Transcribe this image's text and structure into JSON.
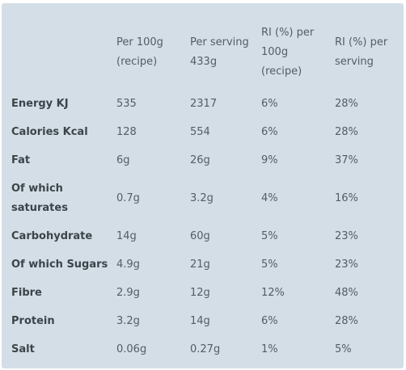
{
  "table": {
    "headers": {
      "nutrient": "",
      "per_100g": "Per 100g (recipe)",
      "per_serving": "Per serving 433g",
      "ri_per_100g": "RI (%) per 100g (recipe)",
      "ri_per_serving": "RI (%) per serving"
    },
    "rows": [
      {
        "nutrient": "Energy KJ",
        "per_100g": "535",
        "per_serving": "2317",
        "ri_per_100g": "6%",
        "ri_per_serving": "28%"
      },
      {
        "nutrient": "Calories Kcal",
        "per_100g": "128",
        "per_serving": "554",
        "ri_per_100g": "6%",
        "ri_per_serving": "28%"
      },
      {
        "nutrient": "Fat",
        "per_100g": "6g",
        "per_serving": "26g",
        "ri_per_100g": "9%",
        "ri_per_serving": "37%"
      },
      {
        "nutrient": "Of which saturates",
        "per_100g": "0.7g",
        "per_serving": "3.2g",
        "ri_per_100g": "4%",
        "ri_per_serving": "16%"
      },
      {
        "nutrient": "Carbohydrate",
        "per_100g": "14g",
        "per_serving": "60g",
        "ri_per_100g": "5%",
        "ri_per_serving": "23%"
      },
      {
        "nutrient": "Of which Sugars",
        "per_100g": "4.9g",
        "per_serving": "21g",
        "ri_per_100g": "5%",
        "ri_per_serving": "23%"
      },
      {
        "nutrient": "Fibre",
        "per_100g": "2.9g",
        "per_serving": "12g",
        "ri_per_100g": "12%",
        "ri_per_serving": "48%"
      },
      {
        "nutrient": "Protein",
        "per_100g": "3.2g",
        "per_serving": "14g",
        "ri_per_100g": "6%",
        "ri_per_serving": "28%"
      },
      {
        "nutrient": "Salt",
        "per_100g": "0.06g",
        "per_serving": "0.27g",
        "ri_per_100g": "1%",
        "ri_per_serving": "5%"
      }
    ]
  }
}
